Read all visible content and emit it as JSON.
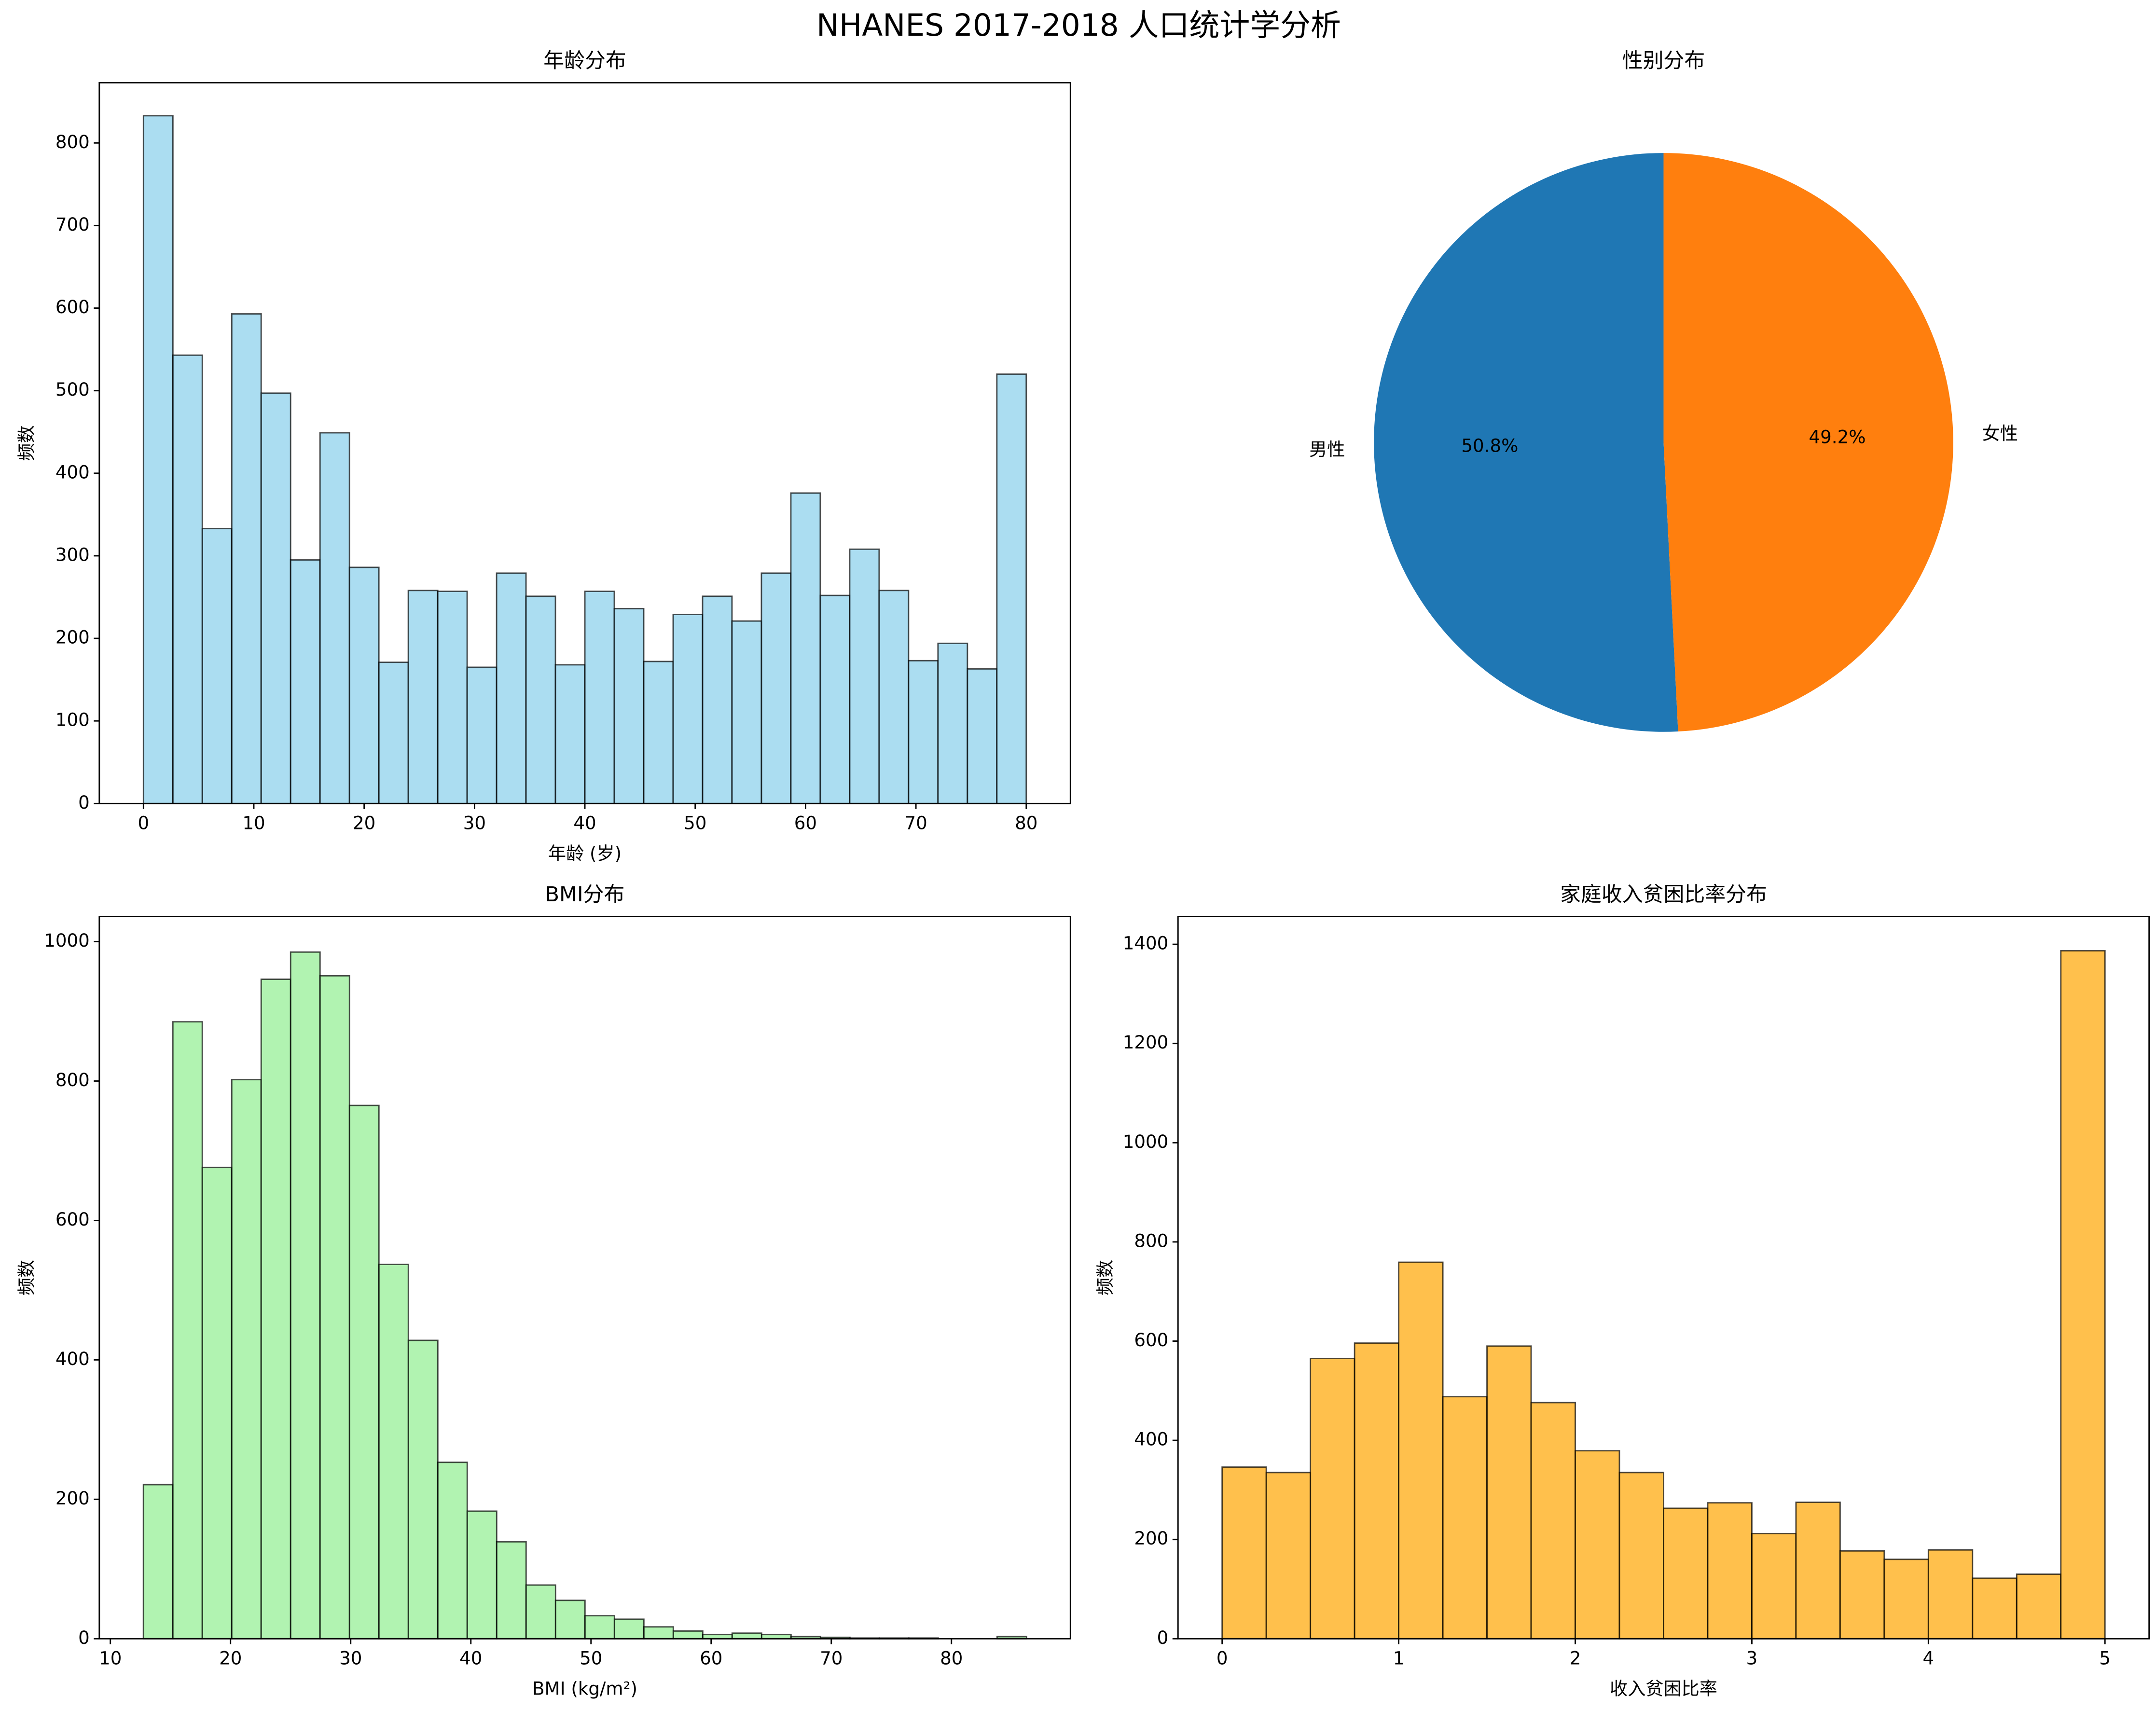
{
  "title": "NHANES 2017-2018 人口统计学分析",
  "chart_data": [
    {
      "type": "histogram",
      "title": "年龄分布",
      "xlabel": "年龄 (岁)",
      "ylabel": "频数",
      "color": "#87ceeb",
      "bins": [
        0,
        2.667,
        5.333,
        8,
        10.667,
        13.333,
        16,
        18.667,
        21.333,
        24,
        26.667,
        29.333,
        32,
        34.667,
        37.333,
        40,
        42.667,
        45.333,
        48,
        50.667,
        53.333,
        56,
        58.667,
        61.333,
        64,
        66.667,
        69.333,
        72,
        74.667,
        77.333,
        80
      ],
      "values": [
        833,
        543,
        333,
        593,
        497,
        295,
        449,
        286,
        171,
        258,
        257,
        165,
        279,
        251,
        168,
        257,
        236,
        172,
        229,
        251,
        221,
        279,
        376,
        252,
        308,
        258,
        173,
        194,
        163,
        520
      ],
      "xlim": [
        -4,
        84
      ],
      "ylim": [
        0,
        873
      ],
      "xticks": [
        0,
        10,
        20,
        30,
        40,
        50,
        60,
        70,
        80
      ],
      "yticks": [
        0,
        100,
        200,
        300,
        400,
        500,
        600,
        700,
        800
      ]
    },
    {
      "type": "pie",
      "title": "性别分布",
      "categories": [
        "男性",
        "女性"
      ],
      "values": [
        50.8,
        49.2
      ],
      "value_labels": [
        "50.8%",
        "49.2%"
      ],
      "colors": [
        "#1f77b4",
        "#ff7f0e"
      ]
    },
    {
      "type": "histogram",
      "title": "BMI分布",
      "xlabel": "BMI (kg/m²)",
      "ylabel": "频数",
      "color": "#90ee90",
      "bins": [
        12.75,
        15.2,
        17.65,
        20.1,
        22.55,
        25,
        27.45,
        29.9,
        32.35,
        34.8,
        37.25,
        39.7,
        42.15,
        44.6,
        47.05,
        49.5,
        51.95,
        54.4,
        56.85,
        59.3,
        61.75,
        64.2,
        66.65,
        69.1,
        71.55,
        74,
        76.45,
        78.9,
        81.35,
        83.8,
        86.25
      ],
      "values": [
        221,
        885,
        676,
        802,
        946,
        985,
        951,
        765,
        537,
        428,
        253,
        183,
        139,
        77,
        55,
        33,
        28,
        17,
        11,
        6,
        8,
        6,
        3,
        2,
        1,
        1,
        1,
        0,
        0,
        3
      ],
      "xlim": [
        9.08,
        89.9
      ],
      "ylim": [
        0,
        1036
      ],
      "xticks": [
        10,
        20,
        30,
        40,
        50,
        60,
        70,
        80
      ],
      "yticks": [
        0,
        200,
        400,
        600,
        800,
        1000
      ]
    },
    {
      "type": "histogram",
      "title": "家庭收入贫困比率分布",
      "xlabel": "收入贫困比率",
      "ylabel": "频数",
      "color": "#ffa500",
      "bins": [
        0,
        0.25,
        0.5,
        0.75,
        1,
        1.25,
        1.5,
        1.75,
        2,
        2.25,
        2.5,
        2.75,
        3,
        3.25,
        3.5,
        3.75,
        4,
        4.25,
        4.5,
        4.75,
        5
      ],
      "values": [
        346,
        335,
        565,
        596,
        759,
        488,
        590,
        476,
        379,
        335,
        263,
        274,
        212,
        275,
        177,
        160,
        179,
        122,
        130,
        1387
      ],
      "xlim": [
        -0.25,
        5.25
      ],
      "ylim": [
        0,
        1456
      ],
      "xticks": [
        0,
        1,
        2,
        3,
        4,
        5
      ],
      "yticks": [
        0,
        200,
        400,
        600,
        800,
        1000,
        1200,
        1400
      ]
    }
  ]
}
